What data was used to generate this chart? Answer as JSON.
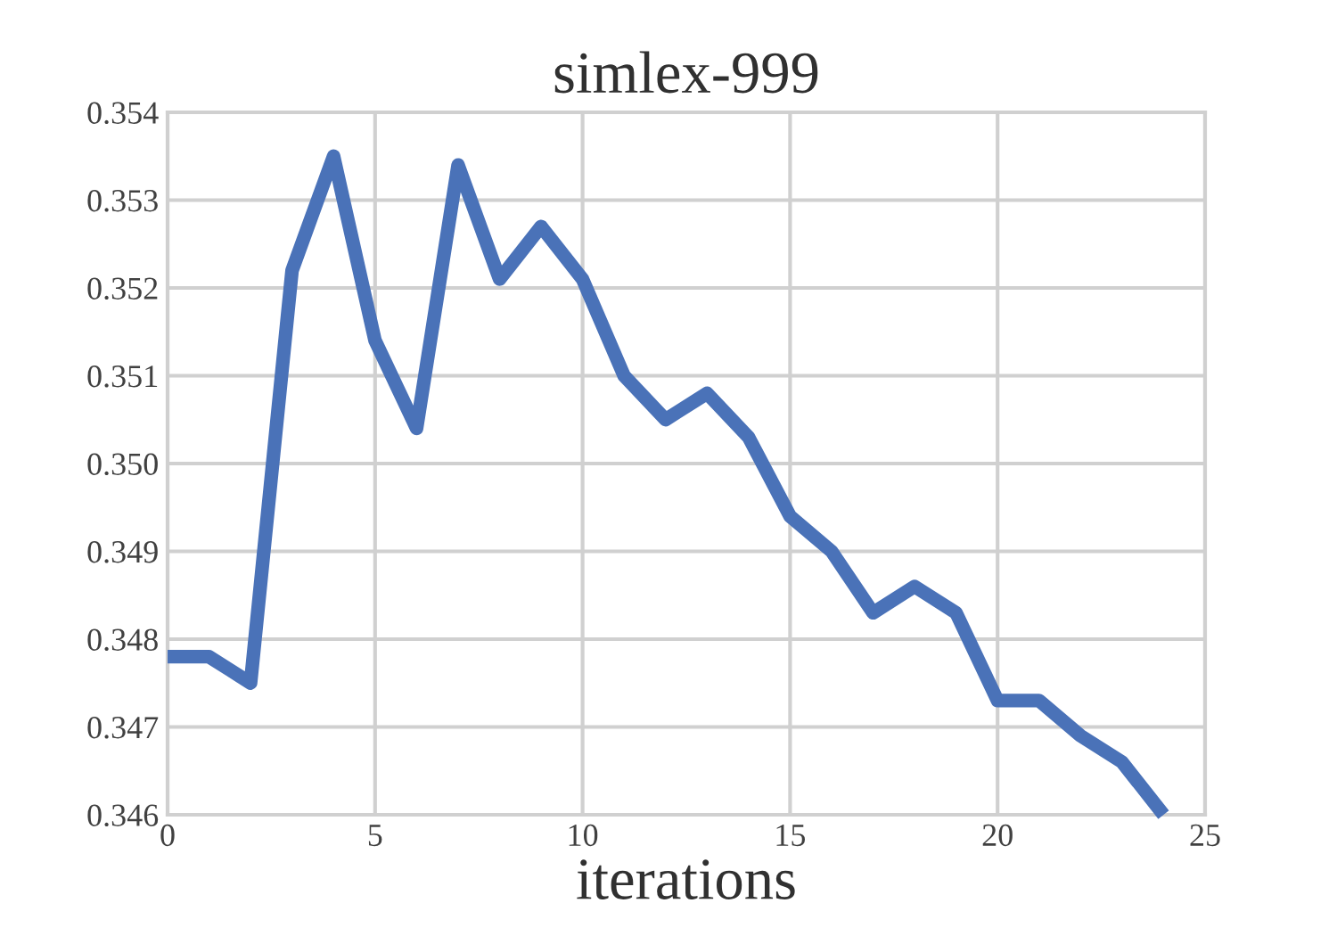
{
  "chart_data": {
    "type": "line",
    "title": "simlex-999",
    "xlabel": "iterations",
    "x": [
      0,
      1,
      2,
      3,
      4,
      5,
      6,
      7,
      8,
      9,
      10,
      11,
      12,
      13,
      14,
      15,
      16,
      17,
      18,
      19,
      20,
      21,
      22,
      23,
      24
    ],
    "series": [
      {
        "color": "#4a72b8",
        "values": [
          0.3478,
          0.3478,
          0.3475,
          0.3522,
          0.3535,
          0.3514,
          0.3504,
          0.3534,
          0.3521,
          0.3527,
          0.3521,
          0.351,
          0.3505,
          0.3508,
          0.3503,
          0.3494,
          0.349,
          0.3483,
          0.3486,
          0.3483,
          0.3473,
          0.3473,
          0.3469,
          0.3466,
          0.346
        ]
      }
    ],
    "xlim": [
      0,
      25
    ],
    "xticks": [
      0,
      5,
      10,
      15,
      20,
      25
    ],
    "ylim": [
      0.346,
      0.354
    ],
    "yticks": [
      {
        "value": 0.346,
        "label": "0.346"
      },
      {
        "value": 0.347,
        "label": "0.347"
      },
      {
        "value": 0.348,
        "label": "0.348"
      },
      {
        "value": 0.349,
        "label": "0.349"
      },
      {
        "value": 0.35,
        "label": "0.350"
      },
      {
        "value": 0.351,
        "label": "0.351"
      },
      {
        "value": 0.352,
        "label": "0.352"
      },
      {
        "value": 0.353,
        "label": "0.353"
      },
      {
        "value": 0.354,
        "label": "0.354"
      }
    ],
    "grid": true,
    "marker": "none",
    "line_style": "solid"
  }
}
